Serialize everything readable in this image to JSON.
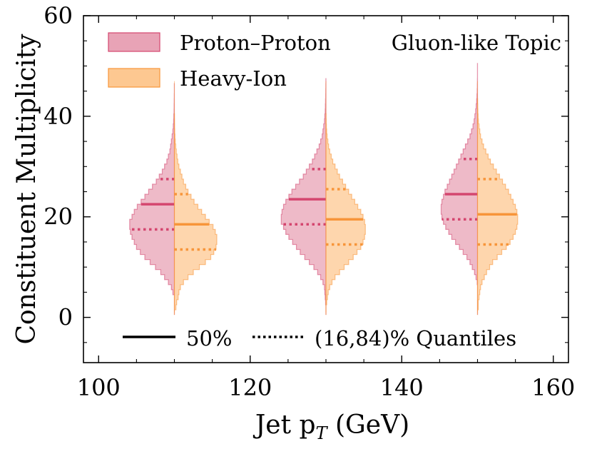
{
  "chart_data": {
    "type": "split-violin-histogram",
    "xlabel": "Jet p",
    "xlabel_sub": "T",
    "xlabel_unit": " (GeV)",
    "ylabel": "Constituent Multiplicity",
    "annotation": "Gluon-like Topic",
    "xlim": [
      98,
      162
    ],
    "ylim": [
      -9,
      60
    ],
    "xticks": [
      100,
      120,
      140,
      160
    ],
    "yticks": [
      0,
      20,
      40,
      60
    ],
    "colors": {
      "pp_fill": "#e8a3b6",
      "pp_line": "#d4466f",
      "hi_fill": "#fdc891",
      "hi_line": "#f7953a"
    },
    "legend": {
      "pp_label": "Proton–Proton",
      "hi_label": "Heavy-Ion",
      "median_label": "50%",
      "quantile_label": "(16,84)% Quantiles"
    },
    "groups": [
      {
        "x": 110,
        "pp": {
          "ymin": 4,
          "ymax": 46,
          "median": 22.5,
          "q16": 17.5,
          "q84": 27.5,
          "widths": [
            0,
            0,
            0,
            0,
            0.2,
            0.4,
            0.8,
            1.3,
            1.8,
            2.5,
            3.2,
            3.9,
            4.5,
            5.0,
            5.3,
            5.6,
            5.8,
            5.9,
            5.9,
            5.6,
            5.3,
            4.9,
            4.4,
            3.9,
            3.4,
            2.9,
            2.4,
            2.0,
            1.6,
            1.3,
            1.0,
            0.8,
            0.6,
            0.5,
            0.4,
            0.3,
            0.2,
            0.15,
            0.1,
            0.08,
            0.05,
            0.04,
            0.03,
            0.02,
            0.01,
            0.01
          ]
        },
        "hi": {
          "ymin": 1,
          "ymax": 40,
          "median": 18.5,
          "q16": 13.5,
          "q84": 24.5,
          "widths": [
            0,
            0.2,
            0.3,
            0.5,
            0.6,
            0.8,
            1.2,
            1.8,
            2.5,
            3.3,
            4.1,
            4.8,
            5.2,
            5.5,
            5.6,
            5.6,
            5.4,
            5.1,
            4.6,
            4.1,
            3.6,
            3.1,
            2.6,
            2.2,
            1.8,
            1.5,
            1.2,
            1.0,
            0.8,
            0.6,
            0.45,
            0.35,
            0.25,
            0.18,
            0.12,
            0.08,
            0.05,
            0.03,
            0.02,
            0.01
          ]
        }
      },
      {
        "x": 130,
        "pp": {
          "ymin": 1,
          "ymax": 47,
          "median": 23.5,
          "q16": 18.5,
          "q84": 29.5,
          "widths": [
            0,
            0,
            0.05,
            0.1,
            0.15,
            0.2,
            0.4,
            0.7,
            1.1,
            1.6,
            2.2,
            2.8,
            3.4,
            3.9,
            4.4,
            4.9,
            5.3,
            5.6,
            5.9,
            5.9,
            5.8,
            5.6,
            5.3,
            4.9,
            4.5,
            4.0,
            3.5,
            3.0,
            2.6,
            2.2,
            1.8,
            1.5,
            1.2,
            0.9,
            0.7,
            0.5,
            0.4,
            0.3,
            0.2,
            0.15,
            0.1,
            0.08,
            0.06,
            0.04,
            0.03,
            0.02,
            0.01
          ]
        },
        "hi": {
          "ymin": 1,
          "ymax": 40,
          "median": 19.5,
          "q16": 14.5,
          "q84": 25.5,
          "widths": [
            0,
            0,
            0.1,
            0.2,
            0.3,
            0.5,
            0.8,
            1.2,
            1.8,
            2.4,
            3.0,
            3.6,
            4.1,
            4.6,
            4.9,
            5.1,
            5.2,
            5.2,
            5.1,
            4.9,
            4.6,
            4.2,
            3.8,
            3.4,
            3.0,
            2.6,
            2.2,
            1.8,
            1.5,
            1.2,
            0.9,
            0.7,
            0.5,
            0.35,
            0.25,
            0.15,
            0.1,
            0.06,
            0.03,
            0.01
          ]
        }
      },
      {
        "x": 150,
        "pp": {
          "ymin": 6,
          "ymax": 50,
          "median": 24.5,
          "q16": 19.5,
          "q84": 31.5,
          "widths": [
            0,
            0,
            0,
            0,
            0,
            0,
            0.05,
            0.2,
            0.4,
            0.7,
            1.0,
            1.4,
            1.9,
            2.4,
            2.9,
            3.4,
            3.8,
            4.2,
            4.5,
            4.7,
            4.8,
            4.8,
            4.7,
            4.5,
            4.3,
            4.0,
            3.7,
            3.4,
            3.1,
            2.8,
            2.5,
            2.2,
            1.9,
            1.6,
            1.3,
            1.0,
            0.8,
            0.6,
            0.45,
            0.35,
            0.25,
            0.18,
            0.12,
            0.08,
            0.05,
            0.03,
            0.02,
            0.01,
            0.01,
            0.01
          ]
        },
        "hi": {
          "ymin": 1,
          "ymax": 43,
          "median": 20.5,
          "q16": 14.5,
          "q84": 27.5,
          "widths": [
            0,
            0.1,
            0.1,
            0.2,
            0.3,
            0.4,
            0.6,
            0.9,
            1.2,
            1.6,
            2.0,
            2.6,
            3.2,
            3.8,
            4.3,
            4.7,
            5.0,
            5.2,
            5.3,
            5.3,
            5.2,
            5.0,
            4.7,
            4.4,
            4.1,
            3.7,
            3.3,
            2.9,
            2.5,
            2.1,
            1.7,
            1.4,
            1.1,
            0.8,
            0.6,
            0.4,
            0.3,
            0.2,
            0.12,
            0.08,
            0.05,
            0.03,
            0.01
          ]
        }
      }
    ]
  }
}
